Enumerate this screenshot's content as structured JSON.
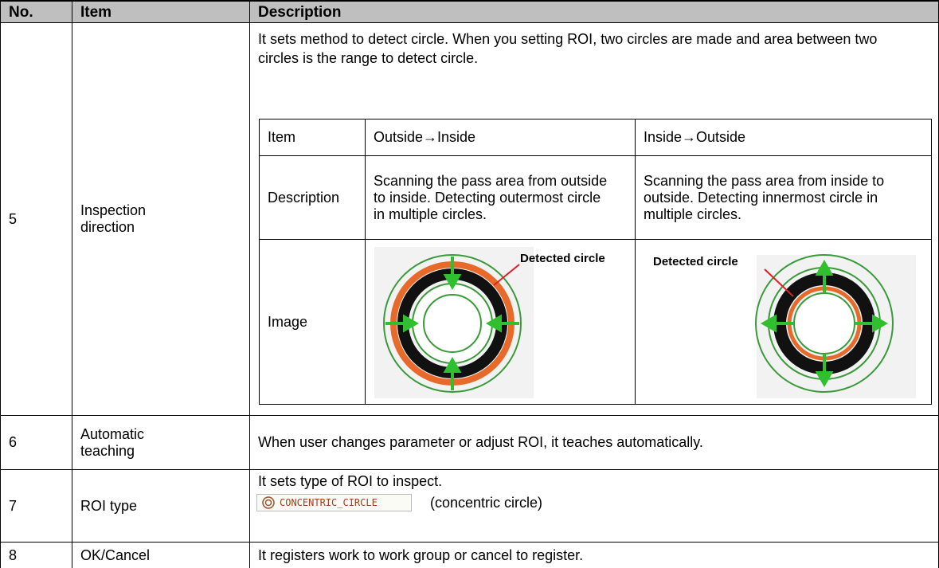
{
  "table": {
    "header": [
      "No.",
      "Item",
      "Description"
    ],
    "rows": [
      {
        "no": "5",
        "item": "Inspection direction",
        "description": "It sets method to detect circle. When you setting ROI, two circles are made and area between two circles is the range to detect circle.",
        "sub_table": {
          "header": [
            "Item",
            "Outside→Inside",
            "Inside→Outside"
          ],
          "rows": [
            [
              "Description",
              "Scanning the pass area from outside to inside. Detecting outermost circle in multiple circles.",
              "Scanning the pass area from inside to outside. Detecting innermost circle in multiple circles."
            ],
            [
              "Image",
              "Detected circle",
              "Detected circle"
            ]
          ]
        }
      },
      {
        "no": "6",
        "item": "Automatic teaching",
        "description": "When user changes parameter or adjust ROI, it teaches automatically."
      },
      {
        "no": "7",
        "item": "ROI type",
        "description": "It sets type of ROI to inspect.",
        "widget": "CONCENTRIC_CIRCLE",
        "note": "(concentric circle)"
      },
      {
        "no": "8",
        "item": "OK/Cancel",
        "description": "It registers work to work group or cancel to register."
      }
    ]
  }
}
